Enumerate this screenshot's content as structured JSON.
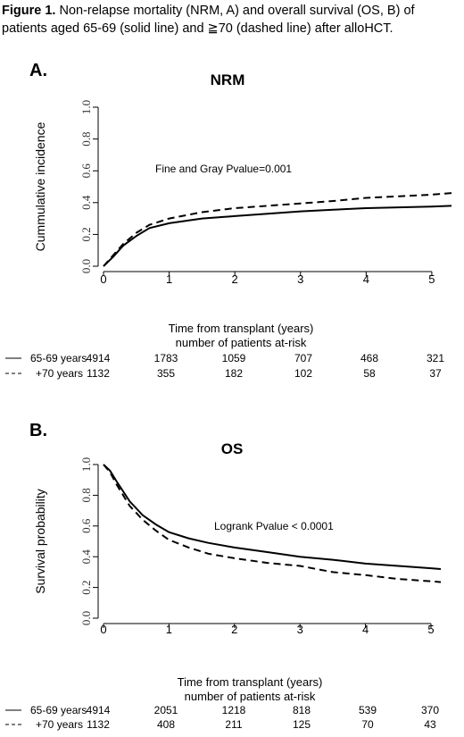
{
  "caption": {
    "label": "Figure 1.",
    "text": "Non-relapse mortality (NRM, A) and overall survival (OS, B) of patients aged 65-69 (solid line) and ≧70 (dashed line) after alloHCT."
  },
  "chart_data": [
    {
      "type": "line",
      "panel_label": "A.",
      "title": "NRM",
      "xlabel": "Time from transplant (years)",
      "ylabel": "Cummulative incidence",
      "xlim": [
        0,
        5.3
      ],
      "ylim": [
        0,
        1.0
      ],
      "x_ticks": [
        "0",
        "1",
        "2",
        "3",
        "4",
        "5"
      ],
      "y_ticks": [
        "0.0",
        "0.2",
        "0.4",
        "0.6",
        "0.8",
        "1.0"
      ],
      "annotation": "Fine and Gray Pvalue=0.001",
      "series": [
        {
          "style": "solid",
          "points": [
            [
              0,
              0
            ],
            [
              0.15,
              0.06
            ],
            [
              0.3,
              0.13
            ],
            [
              0.5,
              0.19
            ],
            [
              0.7,
              0.24
            ],
            [
              1,
              0.27
            ],
            [
              1.5,
              0.3
            ],
            [
              2,
              0.315
            ],
            [
              2.5,
              0.33
            ],
            [
              3,
              0.345
            ],
            [
              3.5,
              0.355
            ],
            [
              4,
              0.365
            ],
            [
              4.5,
              0.37
            ],
            [
              5,
              0.375
            ],
            [
              5.3,
              0.38
            ]
          ]
        },
        {
          "style": "dashed",
          "points": [
            [
              0,
              0
            ],
            [
              0.15,
              0.07
            ],
            [
              0.3,
              0.14
            ],
            [
              0.5,
              0.21
            ],
            [
              0.7,
              0.26
            ],
            [
              1,
              0.3
            ],
            [
              1.5,
              0.34
            ],
            [
              2,
              0.365
            ],
            [
              2.5,
              0.38
            ],
            [
              3,
              0.395
            ],
            [
              3.5,
              0.41
            ],
            [
              4,
              0.43
            ],
            [
              4.5,
              0.44
            ],
            [
              5,
              0.45
            ],
            [
              5.3,
              0.46
            ]
          ]
        }
      ],
      "at_risk": {
        "header": "number of patients at-risk",
        "rows": [
          {
            "legend": "65-69 years",
            "style": "solid",
            "values": [
              "4914",
              "1783",
              "1059",
              "707",
              "468",
              "321"
            ]
          },
          {
            "legend": "+70 years",
            "style": "dashed",
            "values": [
              "1132",
              "355",
              "182",
              "102",
              "58",
              "37"
            ]
          }
        ]
      }
    },
    {
      "type": "line",
      "panel_label": "B.",
      "title": "OS",
      "xlabel": "Time from transplant (years)",
      "ylabel": "Survival probability",
      "xlim": [
        0,
        5.15
      ],
      "ylim": [
        0,
        1.0
      ],
      "x_ticks": [
        "0",
        "1",
        "2",
        "3",
        "4",
        "5"
      ],
      "y_ticks": [
        "0.0",
        "0.2",
        "0.4",
        "0.6",
        "0.8",
        "1.0"
      ],
      "annotation": "Logrank Pvalue < 0.0001",
      "series": [
        {
          "style": "solid",
          "points": [
            [
              0,
              1.0
            ],
            [
              0.1,
              0.96
            ],
            [
              0.2,
              0.89
            ],
            [
              0.4,
              0.76
            ],
            [
              0.6,
              0.67
            ],
            [
              0.8,
              0.61
            ],
            [
              1,
              0.56
            ],
            [
              1.3,
              0.52
            ],
            [
              1.6,
              0.49
            ],
            [
              2,
              0.46
            ],
            [
              2.5,
              0.43
            ],
            [
              3,
              0.4
            ],
            [
              3.5,
              0.38
            ],
            [
              4,
              0.355
            ],
            [
              4.5,
              0.34
            ],
            [
              5,
              0.325
            ],
            [
              5.15,
              0.32
            ]
          ]
        },
        {
          "style": "dashed",
          "points": [
            [
              0,
              1.0
            ],
            [
              0.1,
              0.95
            ],
            [
              0.2,
              0.87
            ],
            [
              0.4,
              0.73
            ],
            [
              0.6,
              0.64
            ],
            [
              0.8,
              0.57
            ],
            [
              1,
              0.51
            ],
            [
              1.3,
              0.46
            ],
            [
              1.6,
              0.42
            ],
            [
              2,
              0.39
            ],
            [
              2.5,
              0.36
            ],
            [
              3,
              0.34
            ],
            [
              3.5,
              0.3
            ],
            [
              4,
              0.28
            ],
            [
              4.5,
              0.255
            ],
            [
              5,
              0.24
            ],
            [
              5.15,
              0.235
            ]
          ]
        }
      ],
      "at_risk": {
        "header": "number of patients at-risk",
        "rows": [
          {
            "legend": "65-69 years",
            "style": "solid",
            "values": [
              "4914",
              "2051",
              "1218",
              "818",
              "539",
              "370"
            ]
          },
          {
            "legend": "+70 years",
            "style": "dashed",
            "values": [
              "1132",
              "408",
              "211",
              "125",
              "70",
              "43"
            ]
          }
        ]
      }
    }
  ]
}
